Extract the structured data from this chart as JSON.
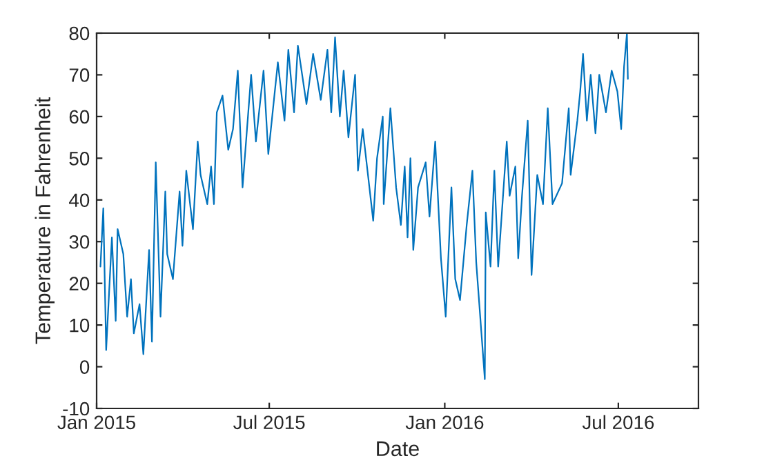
{
  "chart_data": {
    "type": "line",
    "xlabel": "Date",
    "ylabel": "Temperature in Fahrenheit",
    "x": [
      "2015-01-05",
      "2015-01-08",
      "2015-01-11",
      "2015-01-17",
      "2015-01-21",
      "2015-01-23",
      "2015-01-29",
      "2015-02-02",
      "2015-02-06",
      "2015-02-09",
      "2015-02-15",
      "2015-02-19",
      "2015-02-25",
      "2015-02-28",
      "2015-03-04",
      "2015-03-09",
      "2015-03-14",
      "2015-03-16",
      "2015-03-22",
      "2015-03-29",
      "2015-04-01",
      "2015-04-05",
      "2015-04-12",
      "2015-04-17",
      "2015-04-20",
      "2015-04-27",
      "2015-05-01",
      "2015-05-04",
      "2015-05-07",
      "2015-05-13",
      "2015-05-19",
      "2015-05-24",
      "2015-05-29",
      "2015-06-03",
      "2015-06-12",
      "2015-06-17",
      "2015-06-25",
      "2015-06-30",
      "2015-07-10",
      "2015-07-17",
      "2015-07-21",
      "2015-07-27",
      "2015-07-31",
      "2015-08-09",
      "2015-08-16",
      "2015-08-24",
      "2015-08-31",
      "2015-09-04",
      "2015-09-08",
      "2015-09-13",
      "2015-09-17",
      "2015-09-22",
      "2015-09-29",
      "2015-10-02",
      "2015-10-07",
      "2015-10-18",
      "2015-10-22",
      "2015-10-28",
      "2015-10-29",
      "2015-11-05",
      "2015-11-11",
      "2015-11-16",
      "2015-11-20",
      "2015-11-23",
      "2015-11-26",
      "2015-11-29",
      "2015-12-04",
      "2015-12-12",
      "2015-12-16",
      "2015-12-22",
      "2015-12-28",
      "2016-01-02",
      "2016-01-08",
      "2016-01-12",
      "2016-01-17",
      "2016-01-24",
      "2016-01-30",
      "2016-02-03",
      "2016-02-12",
      "2016-02-13",
      "2016-02-18",
      "2016-02-22",
      "2016-02-26",
      "2016-03-06",
      "2016-03-09",
      "2016-03-15",
      "2016-03-18",
      "2016-03-22",
      "2016-03-28",
      "2016-04-01",
      "2016-04-07",
      "2016-04-13",
      "2016-04-18",
      "2016-04-23",
      "2016-05-03",
      "2016-05-10",
      "2016-05-12",
      "2016-05-19",
      "2016-05-22",
      "2016-05-25",
      "2016-05-29",
      "2016-06-02",
      "2016-06-07",
      "2016-06-11",
      "2016-06-18",
      "2016-06-24",
      "2016-06-30",
      "2016-07-04",
      "2016-07-07",
      "2016-07-10",
      "2016-07-11"
    ],
    "series": [
      {
        "color": "#0072bd",
        "values": [
          24,
          38,
          4,
          31,
          11,
          33,
          27,
          12,
          21,
          8,
          15,
          3,
          28,
          6,
          49,
          12,
          42,
          27,
          21,
          42,
          29,
          47,
          33,
          54,
          46,
          39,
          48,
          39,
          61,
          65,
          52,
          57,
          71,
          43,
          70,
          54,
          71,
          51,
          73,
          59,
          76,
          61,
          77,
          63,
          75,
          64,
          76,
          61,
          79,
          60,
          71,
          55,
          70,
          47,
          57,
          35,
          50,
          60,
          39,
          62,
          43,
          34,
          48,
          31,
          50,
          28,
          43,
          49,
          36,
          54,
          26,
          12,
          43,
          21,
          16,
          34,
          47,
          25,
          -3,
          37,
          24,
          47,
          24,
          54,
          41,
          48,
          26,
          41,
          59,
          22,
          46,
          39,
          62,
          39,
          44,
          62,
          46,
          59,
          66,
          75,
          59,
          70,
          56,
          70,
          61,
          71,
          66,
          57,
          72,
          80,
          69
        ]
      }
    ],
    "xlim": [
      "2015-01-01",
      "2016-09-23"
    ],
    "xticks": [
      {
        "value": "2015-01-01",
        "label": "Jan 2015"
      },
      {
        "value": "2015-07-01",
        "label": "Jul 2015"
      },
      {
        "value": "2016-01-01",
        "label": "Jan 2016"
      },
      {
        "value": "2016-07-01",
        "label": "Jul 2016"
      }
    ],
    "ylim": [
      -10,
      80
    ],
    "yticks": [
      -10,
      0,
      10,
      20,
      30,
      40,
      50,
      60,
      70,
      80
    ],
    "grid": false,
    "legend": false,
    "marker": "none",
    "line_style": "solid"
  }
}
